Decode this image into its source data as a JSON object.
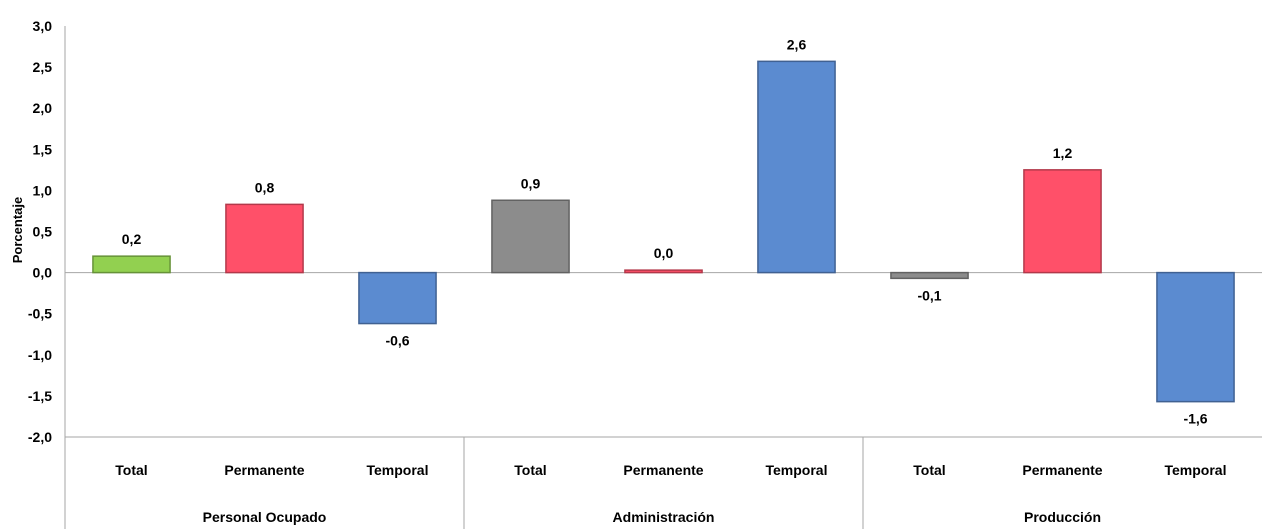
{
  "chart_data": {
    "type": "bar",
    "ylabel": "Porcentaje",
    "ylim": [
      -2.0,
      3.0
    ],
    "ytick_step": 0.5,
    "yticks": [
      "3,0",
      "2,5",
      "2,0",
      "1,5",
      "1,0",
      "0,5",
      "0,0",
      "-0,5",
      "-1,0",
      "-1,5",
      "-2,0"
    ],
    "grid": false,
    "legend": "none",
    "groups": [
      {
        "name": "Personal Ocupado",
        "categories": [
          {
            "label": "Total",
            "value": 0.2,
            "display": "0,2",
            "color": "#92D050"
          },
          {
            "label": "Permanente",
            "value": 0.83,
            "display": "0,8",
            "color": "#FF5069"
          },
          {
            "label": "Temporal",
            "value": -0.62,
            "display": "-0,6",
            "color": "#5B8BD0"
          }
        ]
      },
      {
        "name": "Administración",
        "categories": [
          {
            "label": "Total",
            "value": 0.88,
            "display": "0,9",
            "color": "#8C8C8C"
          },
          {
            "label": "Permanente",
            "value": 0.03,
            "display": "0,0",
            "color": "#FF5069"
          },
          {
            "label": "Temporal",
            "value": 2.57,
            "display": "2,6",
            "color": "#5B8BD0"
          }
        ]
      },
      {
        "name": "Producción",
        "categories": [
          {
            "label": "Total",
            "value": -0.07,
            "display": "-0,1",
            "color": "#8C8C8C"
          },
          {
            "label": "Permanente",
            "value": 1.25,
            "display": "1,2",
            "color": "#FF5069"
          },
          {
            "label": "Temporal",
            "value": -1.57,
            "display": "-1,6",
            "color": "#5B8BD0"
          }
        ]
      }
    ]
  }
}
